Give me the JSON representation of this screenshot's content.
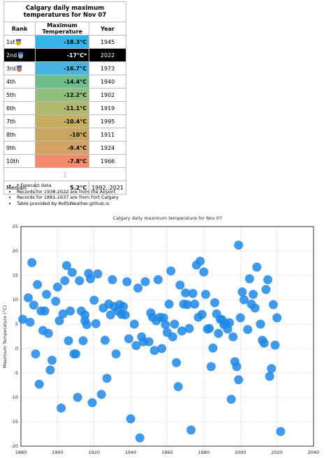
{
  "table": {
    "title": "Calgary daily maximum temperatures for Nov 07",
    "columns": [
      "Rank",
      "Maximum Temperature",
      "Year"
    ],
    "rows": [
      {
        "rank": "1st",
        "temperature": "-18.3°C",
        "year": 1945,
        "color": "#36b4ea"
      },
      {
        "rank": "2nd",
        "temperature": "-17°C*",
        "year": 2022,
        "color": "#000000"
      },
      {
        "rank": "3rd",
        "temperature": "-16.7°C",
        "year": 1973,
        "color": "#45b6e2"
      },
      {
        "rank": "4th",
        "temperature": "-14.4°C",
        "year": 1940,
        "color": "#6ebd8c"
      },
      {
        "rank": "5th",
        "temperature": "-12.2°C",
        "year": 1902,
        "color": "#8fbf7b"
      },
      {
        "rank": "6th",
        "temperature": "-11.1°C",
        "year": 1919,
        "color": "#b1b96e"
      },
      {
        "rank": "7th",
        "temperature": "-10.4°C",
        "year": 1995,
        "color": "#c5ae62"
      },
      {
        "rank": "8th",
        "temperature": "-10°C",
        "year": 1911,
        "color": "#c9a660"
      },
      {
        "rank": "9th",
        "temperature": "-9.4°C",
        "year": 1924,
        "color": "#d4a263"
      },
      {
        "rank": "10th",
        "temperature": "-7.8°C",
        "year": 1966,
        "color": "#f48b6c"
      }
    ],
    "ellipsis": "⋮",
    "median": {
      "label": "Median",
      "temperature": "5.2°C",
      "year": "1992..2021"
    }
  },
  "notes": [
    "* Forecast data",
    "Records for 1938-2022 are from the Airport",
    "Records for 1881-1937 are from Fort Calgary",
    "Table provided by RolfsWeather.github.io"
  ],
  "chart_data": {
    "type": "scatter",
    "title": "Calgary daily maximum temperature for Nov 07",
    "y_label": "Maximum Temperature (°C)",
    "color": "#1e88e5",
    "grid": true,
    "xlim": [
      1880,
      2040
    ],
    "xticks": [
      1880,
      1900,
      1920,
      1940,
      1960,
      1980,
      2000,
      2020,
      2040
    ],
    "ylim": [
      -20,
      25
    ],
    "yticks": [
      -20,
      -15,
      -10,
      -5,
      0,
      5,
      10,
      15,
      20,
      25
    ],
    "x": [
      1881,
      1884,
      1885,
      1886,
      1887,
      1888,
      1889,
      1890,
      1891,
      1892,
      1893,
      1894,
      1895,
      1896,
      1897,
      1899,
      1900,
      1901,
      1902,
      1903,
      1904,
      1905,
      1906,
      1907,
      1908,
      1909,
      1910,
      1911,
      1912,
      1913,
      1914,
      1915,
      1915,
      1916,
      1917,
      1918,
      1919,
      1920,
      1921,
      1922,
      1924,
      1925,
      1926,
      1927,
      1928,
      1929,
      1930,
      1931,
      1932,
      1933,
      1934,
      1935,
      1936,
      1937,
      1938,
      1939,
      1940,
      1942,
      1943,
      1944,
      1945,
      1946,
      1947,
      1948,
      1950,
      1951,
      1952,
      1953,
      1954,
      1955,
      1956,
      1957,
      1958,
      1959,
      1960,
      1961,
      1962,
      1963,
      1964,
      1965,
      1966,
      1967,
      1968,
      1969,
      1970,
      1971,
      1972,
      1973,
      1974,
      1975,
      1976,
      1977,
      1978,
      1979,
      1980,
      1981,
      1982,
      1983,
      1984,
      1985,
      1986,
      1987,
      1988,
      1989,
      1990,
      1991,
      1992,
      1993,
      1995,
      1994,
      1996,
      1997,
      1998,
      1999,
      1999,
      2000,
      2001,
      2002,
      2004,
      2005,
      2006,
      2007,
      2008,
      2009,
      2011,
      2012,
      2013,
      2014,
      2015,
      2016,
      2017,
      2018,
      2019,
      2020,
      2022
    ],
    "values": [
      6.0,
      10.4,
      5.4,
      17.6,
      8.9,
      -1.1,
      13.1,
      -7.3,
      7.7,
      3.7,
      7.7,
      11.1,
      3.1,
      -4.4,
      -2.4,
      9.7,
      12.6,
      5.7,
      -12.2,
      7.1,
      13.9,
      17.0,
      1.6,
      7.7,
      15.6,
      -1.1,
      -1.1,
      -10,
      13.9,
      7.7,
      1.6,
      6.9,
      5.7,
      4.9,
      15.4,
      14.3,
      -11.1,
      9.9,
      5.1,
      15.3,
      -9.4,
      8.3,
      1.7,
      -6.1,
      9.1,
      6.9,
      14.1,
      8.6,
      -1.1,
      7.7,
      9.0,
      7.0,
      8.6,
      6.9,
      13.7,
      2.0,
      -14.4,
      5.0,
      0.6,
      12.4,
      -18.3,
      2.4,
      1.4,
      13.7,
      1.4,
      7.3,
      6.4,
      -0.4,
      5.7,
      14.1,
      6.4,
      0.0,
      6.3,
      4.9,
      3.3,
      9.1,
      15.9,
      2.4,
      5.0,
      -2.9,
      -7.8,
      13.0,
      3.6,
      9.1,
      11.4,
      9.0,
      4.1,
      -16.7,
      11.3,
      9.1,
      17.1,
      6.4,
      17.9,
      7.0,
      15.7,
      11.1,
      4.0,
      4.1,
      -3.7,
      0.1,
      9.4,
      7.1,
      3.1,
      6.0,
      5.9,
      4.9,
      5.1,
      4.0,
      -10.4,
      5.3,
      2.4,
      -2.7,
      -3.7,
      21.2,
      -6.4,
      6.3,
      11.6,
      10.0,
      3.9,
      14.3,
      9.1,
      11.1,
      8.3,
      16.7,
      5.0,
      1.7,
      1.1,
      12.1,
      14.1,
      -5.7,
      -4.1,
      9.0,
      0.7,
      6.3,
      -17
    ]
  }
}
